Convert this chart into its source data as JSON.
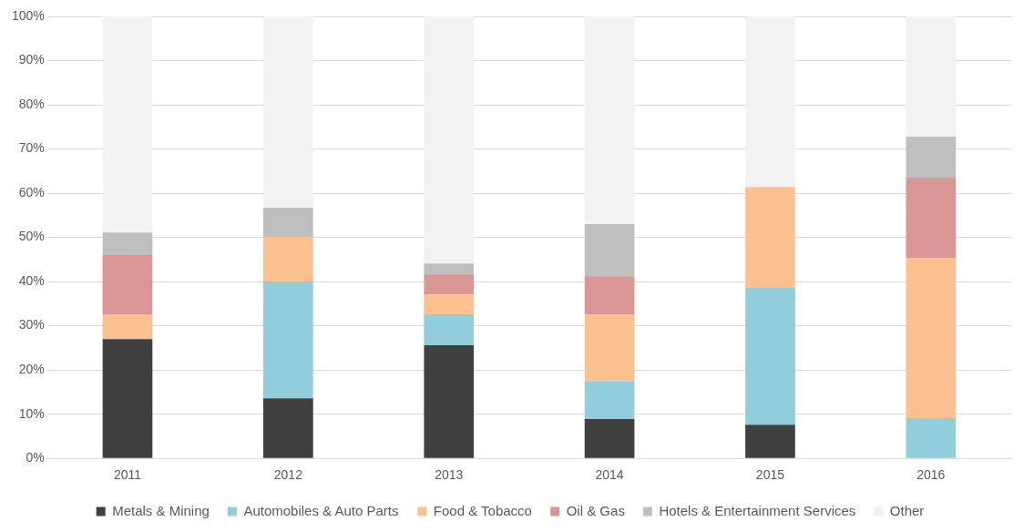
{
  "chart_data": {
    "type": "bar",
    "stacked": true,
    "categories": [
      "2011",
      "2012",
      "2013",
      "2014",
      "2015",
      "2016"
    ],
    "series": [
      {
        "name": "Metals & Mining",
        "color": "#404040",
        "values": [
          27.0,
          13.6,
          25.6,
          8.9,
          7.6,
          0
        ]
      },
      {
        "name": "Automobiles & Auto Parts",
        "color": "#92cddc",
        "values": [
          0,
          26.4,
          7.0,
          8.6,
          31.0,
          9.1
        ]
      },
      {
        "name": "Food & Tobacco",
        "color": "#fac090",
        "values": [
          5.6,
          10.1,
          4.5,
          15.1,
          22.8,
          36.3
        ]
      },
      {
        "name": "Oil & Gas",
        "color": "#d99694",
        "values": [
          13.4,
          0,
          4.5,
          8.6,
          0,
          18.1
        ]
      },
      {
        "name": "Hotels & Entertainment Services",
        "color": "#bfbfbf",
        "values": [
          5.1,
          6.6,
          2.5,
          11.8,
          0,
          9.3
        ]
      },
      {
        "name": "Other",
        "color": "#f2f2f2",
        "values": [
          48.9,
          43.3,
          55.9,
          47.0,
          38.6,
          27.2
        ]
      }
    ],
    "ylim": [
      0,
      100
    ],
    "yticks": [
      {
        "value": 0,
        "label": "0%"
      },
      {
        "value": 10,
        "label": "10%"
      },
      {
        "value": 20,
        "label": "20%"
      },
      {
        "value": 30,
        "label": "30%"
      },
      {
        "value": 40,
        "label": "40%"
      },
      {
        "value": 50,
        "label": "50%"
      },
      {
        "value": 60,
        "label": "60%"
      },
      {
        "value": 70,
        "label": "70%"
      },
      {
        "value": 80,
        "label": "80%"
      },
      {
        "value": 90,
        "label": "90%"
      },
      {
        "value": 100,
        "label": "100%"
      }
    ],
    "grid": "y",
    "legend": "bottom"
  }
}
